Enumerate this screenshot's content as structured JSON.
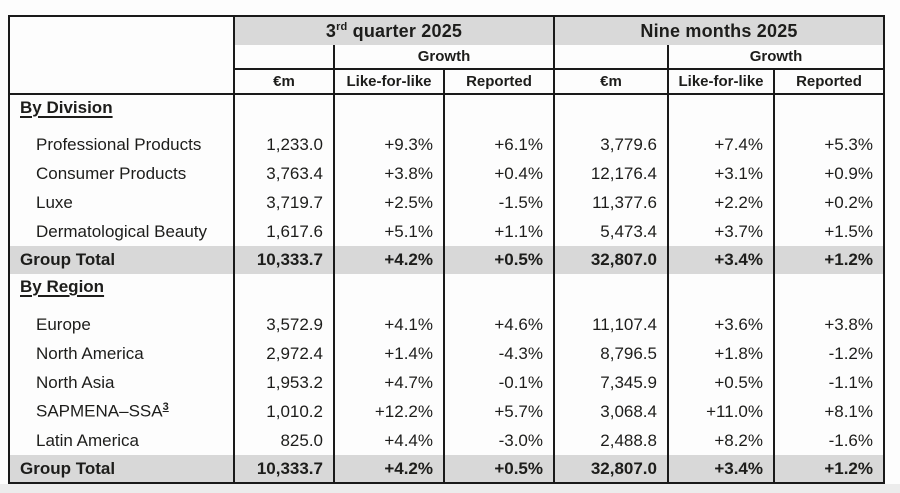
{
  "colors": {
    "header_band_fill": "#d9d9d9",
    "total_row_fill": "#d8d8d8",
    "border": "#1a1a1a",
    "text": "#1d1d1b",
    "bottom_strip": "#ececec"
  },
  "header": {
    "q3_base": "3",
    "q3_sup": "rd",
    "q3_rest": " quarter 2025",
    "nine_months": "Nine months 2025",
    "growth": "Growth",
    "eur_m": "€m",
    "lfl": "Like-for-like",
    "reported": "Reported"
  },
  "table": {
    "column_names": [
      "q3-em",
      "q3-like-for-like",
      "q3-reported",
      "9m-em",
      "9m-like-for-like",
      "9m-reported"
    ],
    "sections": [
      {
        "heading": "By Division",
        "rows": [
          {
            "name": "Professional Products",
            "q3": [
              "1,233.0",
              "+9.3%",
              "+6.1%"
            ],
            "nine_months": [
              "3,779.6",
              "+7.4%",
              "+5.3%"
            ]
          },
          {
            "name": "Consumer Products",
            "q3": [
              "3,763.4",
              "+3.8%",
              "+0.4%"
            ],
            "nine_months": [
              "12,176.4",
              "+3.1%",
              "+0.9%"
            ]
          },
          {
            "name": "Luxe",
            "q3": [
              "3,719.7",
              "+2.5%",
              "-1.5%"
            ],
            "nine_months": [
              "11,377.6",
              "+2.2%",
              "+0.2%"
            ]
          },
          {
            "name": "Dermatological Beauty",
            "q3": [
              "1,617.6",
              "+5.1%",
              "+1.1%"
            ],
            "nine_months": [
              "5,473.4",
              "+3.7%",
              "+1.5%"
            ]
          }
        ],
        "total": {
          "name": "Group Total",
          "q3": [
            "10,333.7",
            "+4.2%",
            "+0.5%"
          ],
          "nine_months": [
            "32,807.0",
            "+3.4%",
            "+1.2%"
          ]
        }
      },
      {
        "heading": "By Region",
        "rows": [
          {
            "name": "Europe",
            "q3": [
              "3,572.9",
              "+4.1%",
              "+4.6%"
            ],
            "nine_months": [
              "11,107.4",
              "+3.6%",
              "+3.8%"
            ]
          },
          {
            "name": "North America",
            "q3": [
              "2,972.4",
              "+1.4%",
              "-4.3%"
            ],
            "nine_months": [
              "8,796.5",
              "+1.8%",
              "-1.2%"
            ]
          },
          {
            "name": "North Asia",
            "q3": [
              "1,953.2",
              "+4.7%",
              "-0.1%"
            ],
            "nine_months": [
              "7,345.9",
              "+0.5%",
              "-1.1%"
            ]
          },
          {
            "name": "SAPMENA–SSA",
            "name_sup": "3",
            "q3": [
              "1,010.2",
              "+12.2%",
              "+5.7%"
            ],
            "nine_months": [
              "3,068.4",
              "+11.0%",
              "+8.1%"
            ]
          },
          {
            "name": "Latin America",
            "q3": [
              "825.0",
              "+4.4%",
              "-3.0%"
            ],
            "nine_months": [
              "2,488.8",
              "+8.2%",
              "-1.6%"
            ]
          }
        ],
        "total": {
          "name": "Group Total",
          "q3": [
            "10,333.7",
            "+4.2%",
            "+0.5%"
          ],
          "nine_months": [
            "32,807.0",
            "+3.4%",
            "+1.2%"
          ]
        }
      }
    ]
  }
}
